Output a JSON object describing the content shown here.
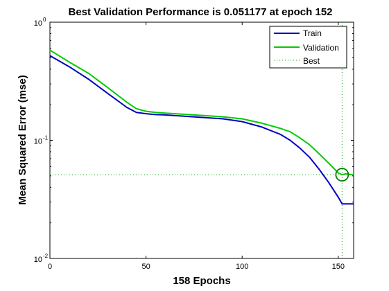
{
  "chart_data": {
    "type": "line",
    "title": "Best Validation Performance is 0.051177 at epoch 152",
    "xlabel": "158 Epochs",
    "ylabel": "Mean Squared Error  (mse)",
    "xlim": [
      0,
      158
    ],
    "ylim": [
      0.01,
      1
    ],
    "yscale": "log",
    "xticks": [
      {
        "value": 0,
        "label": "0"
      },
      {
        "value": 50,
        "label": "50"
      },
      {
        "value": 100,
        "label": "100"
      },
      {
        "value": 150,
        "label": "150"
      }
    ],
    "yticks": [
      {
        "value": 1,
        "base": "10",
        "exp": "0"
      },
      {
        "value": 0.1,
        "base": "10",
        "exp": "-1"
      },
      {
        "value": 0.01,
        "base": "10",
        "exp": "-2"
      }
    ],
    "grid": false,
    "legend_position": "top-right",
    "series": [
      {
        "name": "Train",
        "color": "#0000bf",
        "x": [
          0,
          10,
          20,
          30,
          40,
          45,
          50,
          55,
          60,
          70,
          80,
          90,
          100,
          110,
          120,
          125,
          130,
          135,
          140,
          145,
          150,
          152,
          154,
          158
        ],
        "y": [
          0.52,
          0.42,
          0.33,
          0.25,
          0.19,
          0.172,
          0.168,
          0.165,
          0.164,
          0.16,
          0.156,
          0.152,
          0.144,
          0.13,
          0.112,
          0.1,
          0.086,
          0.072,
          0.057,
          0.044,
          0.033,
          0.029,
          0.029,
          0.029
        ]
      },
      {
        "name": "Validation",
        "color": "#00cc00",
        "x": [
          0,
          10,
          20,
          30,
          40,
          45,
          50,
          55,
          60,
          70,
          80,
          90,
          100,
          110,
          120,
          125,
          130,
          135,
          140,
          145,
          150,
          152,
          154,
          158
        ],
        "y": [
          0.58,
          0.46,
          0.37,
          0.28,
          0.21,
          0.185,
          0.176,
          0.172,
          0.17,
          0.166,
          0.162,
          0.158,
          0.152,
          0.14,
          0.126,
          0.118,
          0.105,
          0.092,
          0.077,
          0.064,
          0.053,
          0.0512,
          0.052,
          0.051
        ]
      },
      {
        "name": "Best",
        "color": "#00aa00",
        "style": "dotted",
        "best_epoch": 152,
        "best_value": 0.051177
      }
    ]
  }
}
